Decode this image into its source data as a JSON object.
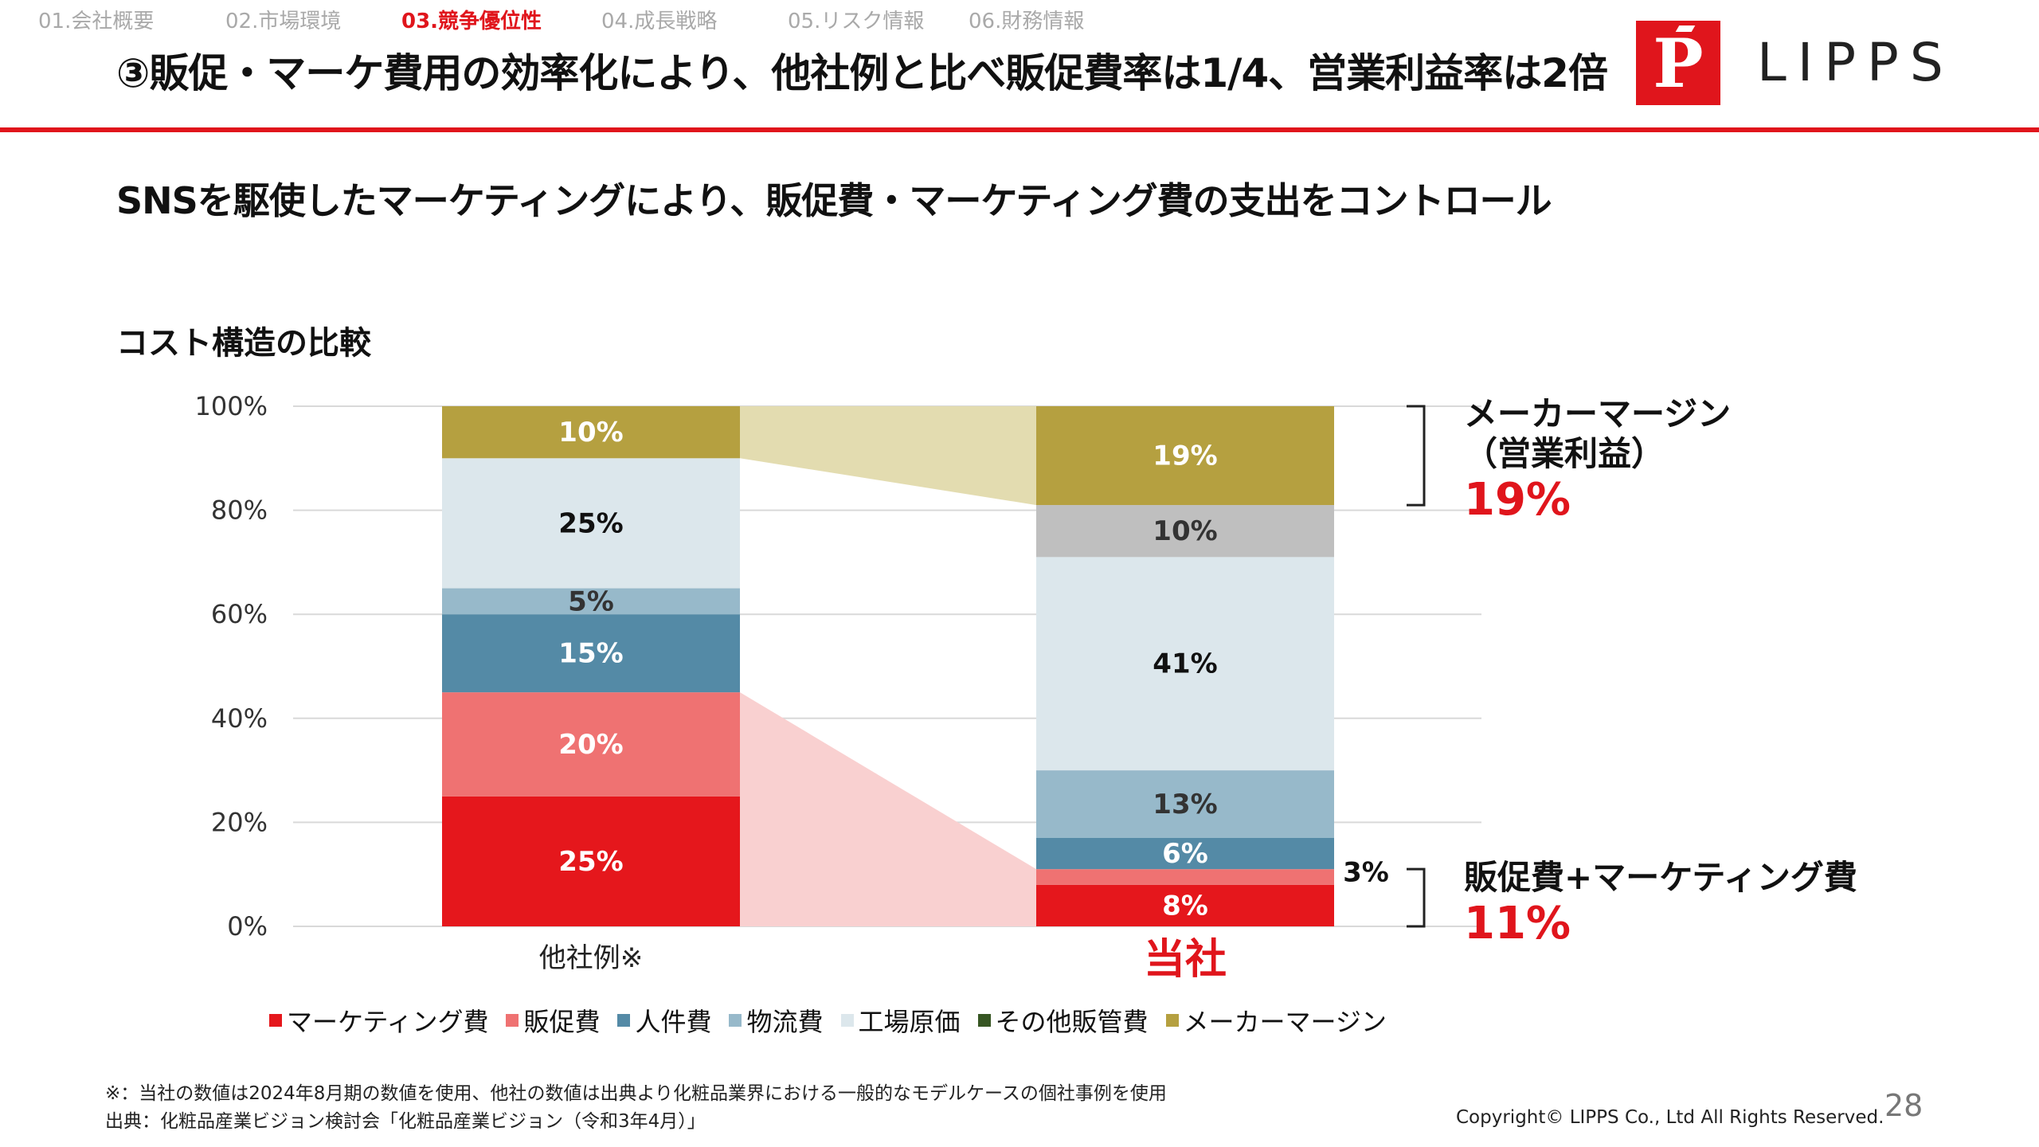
{
  "nav": {
    "items": [
      {
        "label": "01.会社概要",
        "active": false
      },
      {
        "label": "02.市場環境",
        "active": false
      },
      {
        "label": "03.競争優位性",
        "active": true
      },
      {
        "label": "04.成長戦略",
        "active": false
      },
      {
        "label": "05.リスク情報",
        "active": false
      },
      {
        "label": "06.財務情報",
        "active": false
      }
    ]
  },
  "header": {
    "title": "③販促・マーケ費用の効率化により、他社例と比べ販促費率は1/4、営業利益率は2倍",
    "logo_mark": "P",
    "logo_text": "LIPPS"
  },
  "subtitle": "SNSを駆使したマーケティングにより、販促費・マーケティング費の支出をコントロール",
  "section_label": "コスト構造の比較",
  "colors": {
    "accent": "#e0151c",
    "marketing": "#e5171c",
    "promotion": "#ef7272",
    "personnel": "#548aa6",
    "logistics": "#97b9ca",
    "factory_cost": "#dce7ec",
    "other_sga": "#375623",
    "maker_margin": "#b5a040",
    "maker_margin_band": "#e3dcb0",
    "other_gray": "#bfbfbf",
    "promo_band": "#f9d0d0"
  },
  "chart_data": {
    "type": "bar",
    "stacked": true,
    "title": "コスト構造の比較",
    "categories": [
      "他社例※",
      "当社"
    ],
    "ylim": [
      0,
      100
    ],
    "yticks": [
      "0%",
      "20%",
      "40%",
      "60%",
      "80%",
      "100%"
    ],
    "grid": true,
    "legend_position": "bottom",
    "series": [
      {
        "name": "マーケティング費",
        "color": "#e5171c",
        "values": [
          25,
          8
        ],
        "labels": [
          "25%",
          "8%"
        ],
        "label_colors": [
          "#ffffff",
          "#ffffff"
        ]
      },
      {
        "name": "販促費",
        "color": "#ef7272",
        "values": [
          20,
          3
        ],
        "labels": [
          "20%",
          "3%"
        ],
        "label_colors": [
          "#ffffff",
          "#111111"
        ]
      },
      {
        "name": "人件費",
        "color": "#548aa6",
        "values": [
          15,
          6
        ],
        "labels": [
          "15%",
          "6%"
        ],
        "label_colors": [
          "#ffffff",
          "#ffffff"
        ]
      },
      {
        "name": "物流費",
        "color": "#97b9ca",
        "values": [
          5,
          13
        ],
        "labels": [
          "5%",
          "13%"
        ],
        "label_colors": [
          "#333333",
          "#333333"
        ]
      },
      {
        "name": "工場原価",
        "color": "#dce7ec",
        "values": [
          25,
          41
        ],
        "labels": [
          "25%",
          "41%"
        ],
        "label_colors": [
          "#111111",
          "#111111"
        ]
      },
      {
        "name": "その他販管費",
        "color": "#375623",
        "values": [
          0,
          0
        ],
        "labels": [
          "",
          ""
        ],
        "label_colors": [
          "#ffffff",
          "#ffffff"
        ]
      },
      {
        "name": "(その他)",
        "color": "#bfbfbf",
        "values": [
          0,
          10
        ],
        "labels": [
          "",
          "10%"
        ],
        "label_colors": [
          "#333333",
          "#333333"
        ],
        "in_legend": false
      },
      {
        "name": "メーカーマージン",
        "color": "#b5a040",
        "values": [
          10,
          19
        ],
        "labels": [
          "10%",
          "19%"
        ],
        "label_colors": [
          "#ffffff",
          "#ffffff"
        ]
      }
    ],
    "annotations": [
      {
        "title_lines": [
          "メーカーマージン",
          "（営業利益）"
        ],
        "value": "19%",
        "range": [
          81,
          100
        ]
      },
      {
        "title_lines": [
          "販促費+マーケティング費"
        ],
        "value": "11%",
        "range": [
          0,
          11
        ]
      }
    ]
  },
  "footnotes": [
    "※：当社の数値は2024年8月期の数値を使用、他社の数値は出典より化粧品業界における一般的なモデルケースの個社事例を使用",
    "出典：化粧品産業ビジョン検討会「化粧品産業ビジョン（令和3年4月）」"
  ],
  "copyright": "Copyright© LIPPS Co., Ltd All Rights Reserved.",
  "page_number": "28"
}
